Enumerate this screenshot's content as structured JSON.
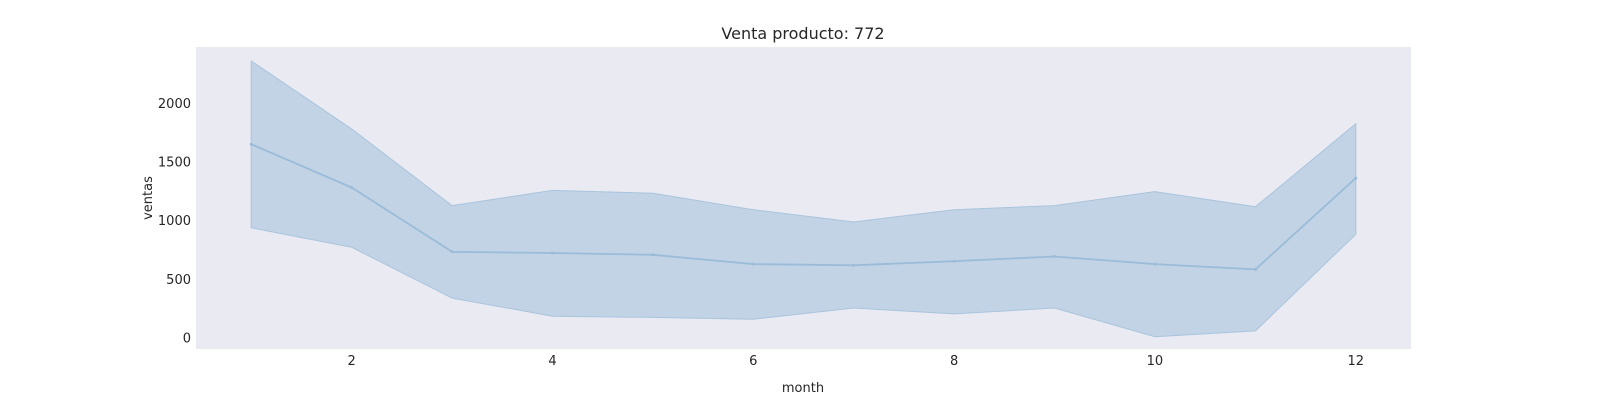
{
  "chart_data": {
    "type": "line",
    "title": "Venta producto: 772",
    "xlabel": "month",
    "ylabel": "ventas",
    "x": [
      1,
      2,
      3,
      4,
      5,
      6,
      7,
      8,
      9,
      10,
      11,
      12
    ],
    "xticks": [
      2,
      4,
      6,
      8,
      10,
      12
    ],
    "yticks": [
      0,
      500,
      1000,
      1500,
      2000
    ],
    "xlim": [
      0.45,
      12.55
    ],
    "ylim": [
      -100,
      2480
    ],
    "grid": false,
    "series": [
      {
        "values": [
          1650,
          1280,
          730,
          720,
          705,
          625,
          615,
          650,
          690,
          625,
          580,
          1360
        ],
        "lower": [
          935,
          770,
          335,
          180,
          170,
          155,
          250,
          200,
          250,
          5,
          55,
          880
        ],
        "upper": [
          2360,
          1780,
          1125,
          1255,
          1230,
          1090,
          985,
          1090,
          1125,
          1245,
          1115,
          1825
        ]
      }
    ],
    "colors": {
      "plot_background": "#EAEAF2",
      "line": "#9ABCD8",
      "band": "#C2D3E5",
      "band_edge": "#A9C4DD",
      "text": "#262626"
    }
  }
}
